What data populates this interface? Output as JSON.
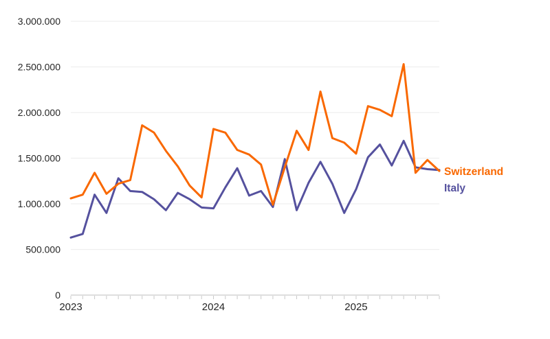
{
  "colors": {
    "background": "#ffffff",
    "text": "#262626",
    "gridline": "#efefef",
    "axis": "#c9c9c9",
    "switzerland": "#f96800",
    "italy": "#55519e"
  },
  "chart_data": {
    "type": "line",
    "title": "",
    "xlabel": "",
    "ylabel": "",
    "grid": "horizontal",
    "legend_position": "line-end-right",
    "ylim": [
      0,
      3000000
    ],
    "x": [
      "Jan 2023",
      "Feb 2023",
      "Mar 2023",
      "Apr 2023",
      "May 2023",
      "Jun 2023",
      "Jul 2023",
      "Aug 2023",
      "Sep 2023",
      "Oct 2023",
      "Nov 2023",
      "Dec 2023",
      "Jan 2024",
      "Feb 2024",
      "Mar 2024",
      "Apr 2024",
      "May 2024",
      "Jun 2024",
      "Jul 2024",
      "Aug 2024",
      "Sep 2024",
      "Oct 2024",
      "Nov 2024",
      "Dec 2024",
      "Jan 2025",
      "Feb 2025",
      "Mar 2025",
      "Apr 2025",
      "May 2025",
      "Jun 2025",
      "Jul 2025",
      "Aug 2025"
    ],
    "x_year_labels": [
      {
        "label": "2023",
        "month_index": 0
      },
      {
        "label": "2024",
        "month_index": 12
      },
      {
        "label": "2025",
        "month_index": 24
      }
    ],
    "y_ticks": [
      {
        "value": 0,
        "label": "0"
      },
      {
        "value": 500000,
        "label": "500.000"
      },
      {
        "value": 1000000,
        "label": "1.000.000"
      },
      {
        "value": 1500000,
        "label": "1.500.000"
      },
      {
        "value": 2000000,
        "label": "2.000.000"
      },
      {
        "value": 2500000,
        "label": "2.500.000"
      },
      {
        "value": 3000000,
        "label": "3.000.000"
      }
    ],
    "series": [
      {
        "name": "Switzerland",
        "color": "#f96800",
        "values": [
          1060000,
          1100000,
          1340000,
          1110000,
          1220000,
          1260000,
          1860000,
          1780000,
          1580000,
          1410000,
          1200000,
          1070000,
          1820000,
          1780000,
          1590000,
          1540000,
          1430000,
          990000,
          1400000,
          1800000,
          1590000,
          2230000,
          1720000,
          1670000,
          1550000,
          2070000,
          2030000,
          1960000,
          2530000,
          1340000,
          1480000,
          1360000
        ]
      },
      {
        "name": "Italy",
        "color": "#55519e",
        "values": [
          630000,
          670000,
          1100000,
          900000,
          1280000,
          1140000,
          1130000,
          1050000,
          930000,
          1120000,
          1050000,
          960000,
          950000,
          1180000,
          1390000,
          1090000,
          1140000,
          965000,
          1490000,
          930000,
          1230000,
          1460000,
          1220000,
          900000,
          1160000,
          1510000,
          1650000,
          1420000,
          1690000,
          1400000,
          1380000,
          1370000
        ]
      }
    ]
  }
}
